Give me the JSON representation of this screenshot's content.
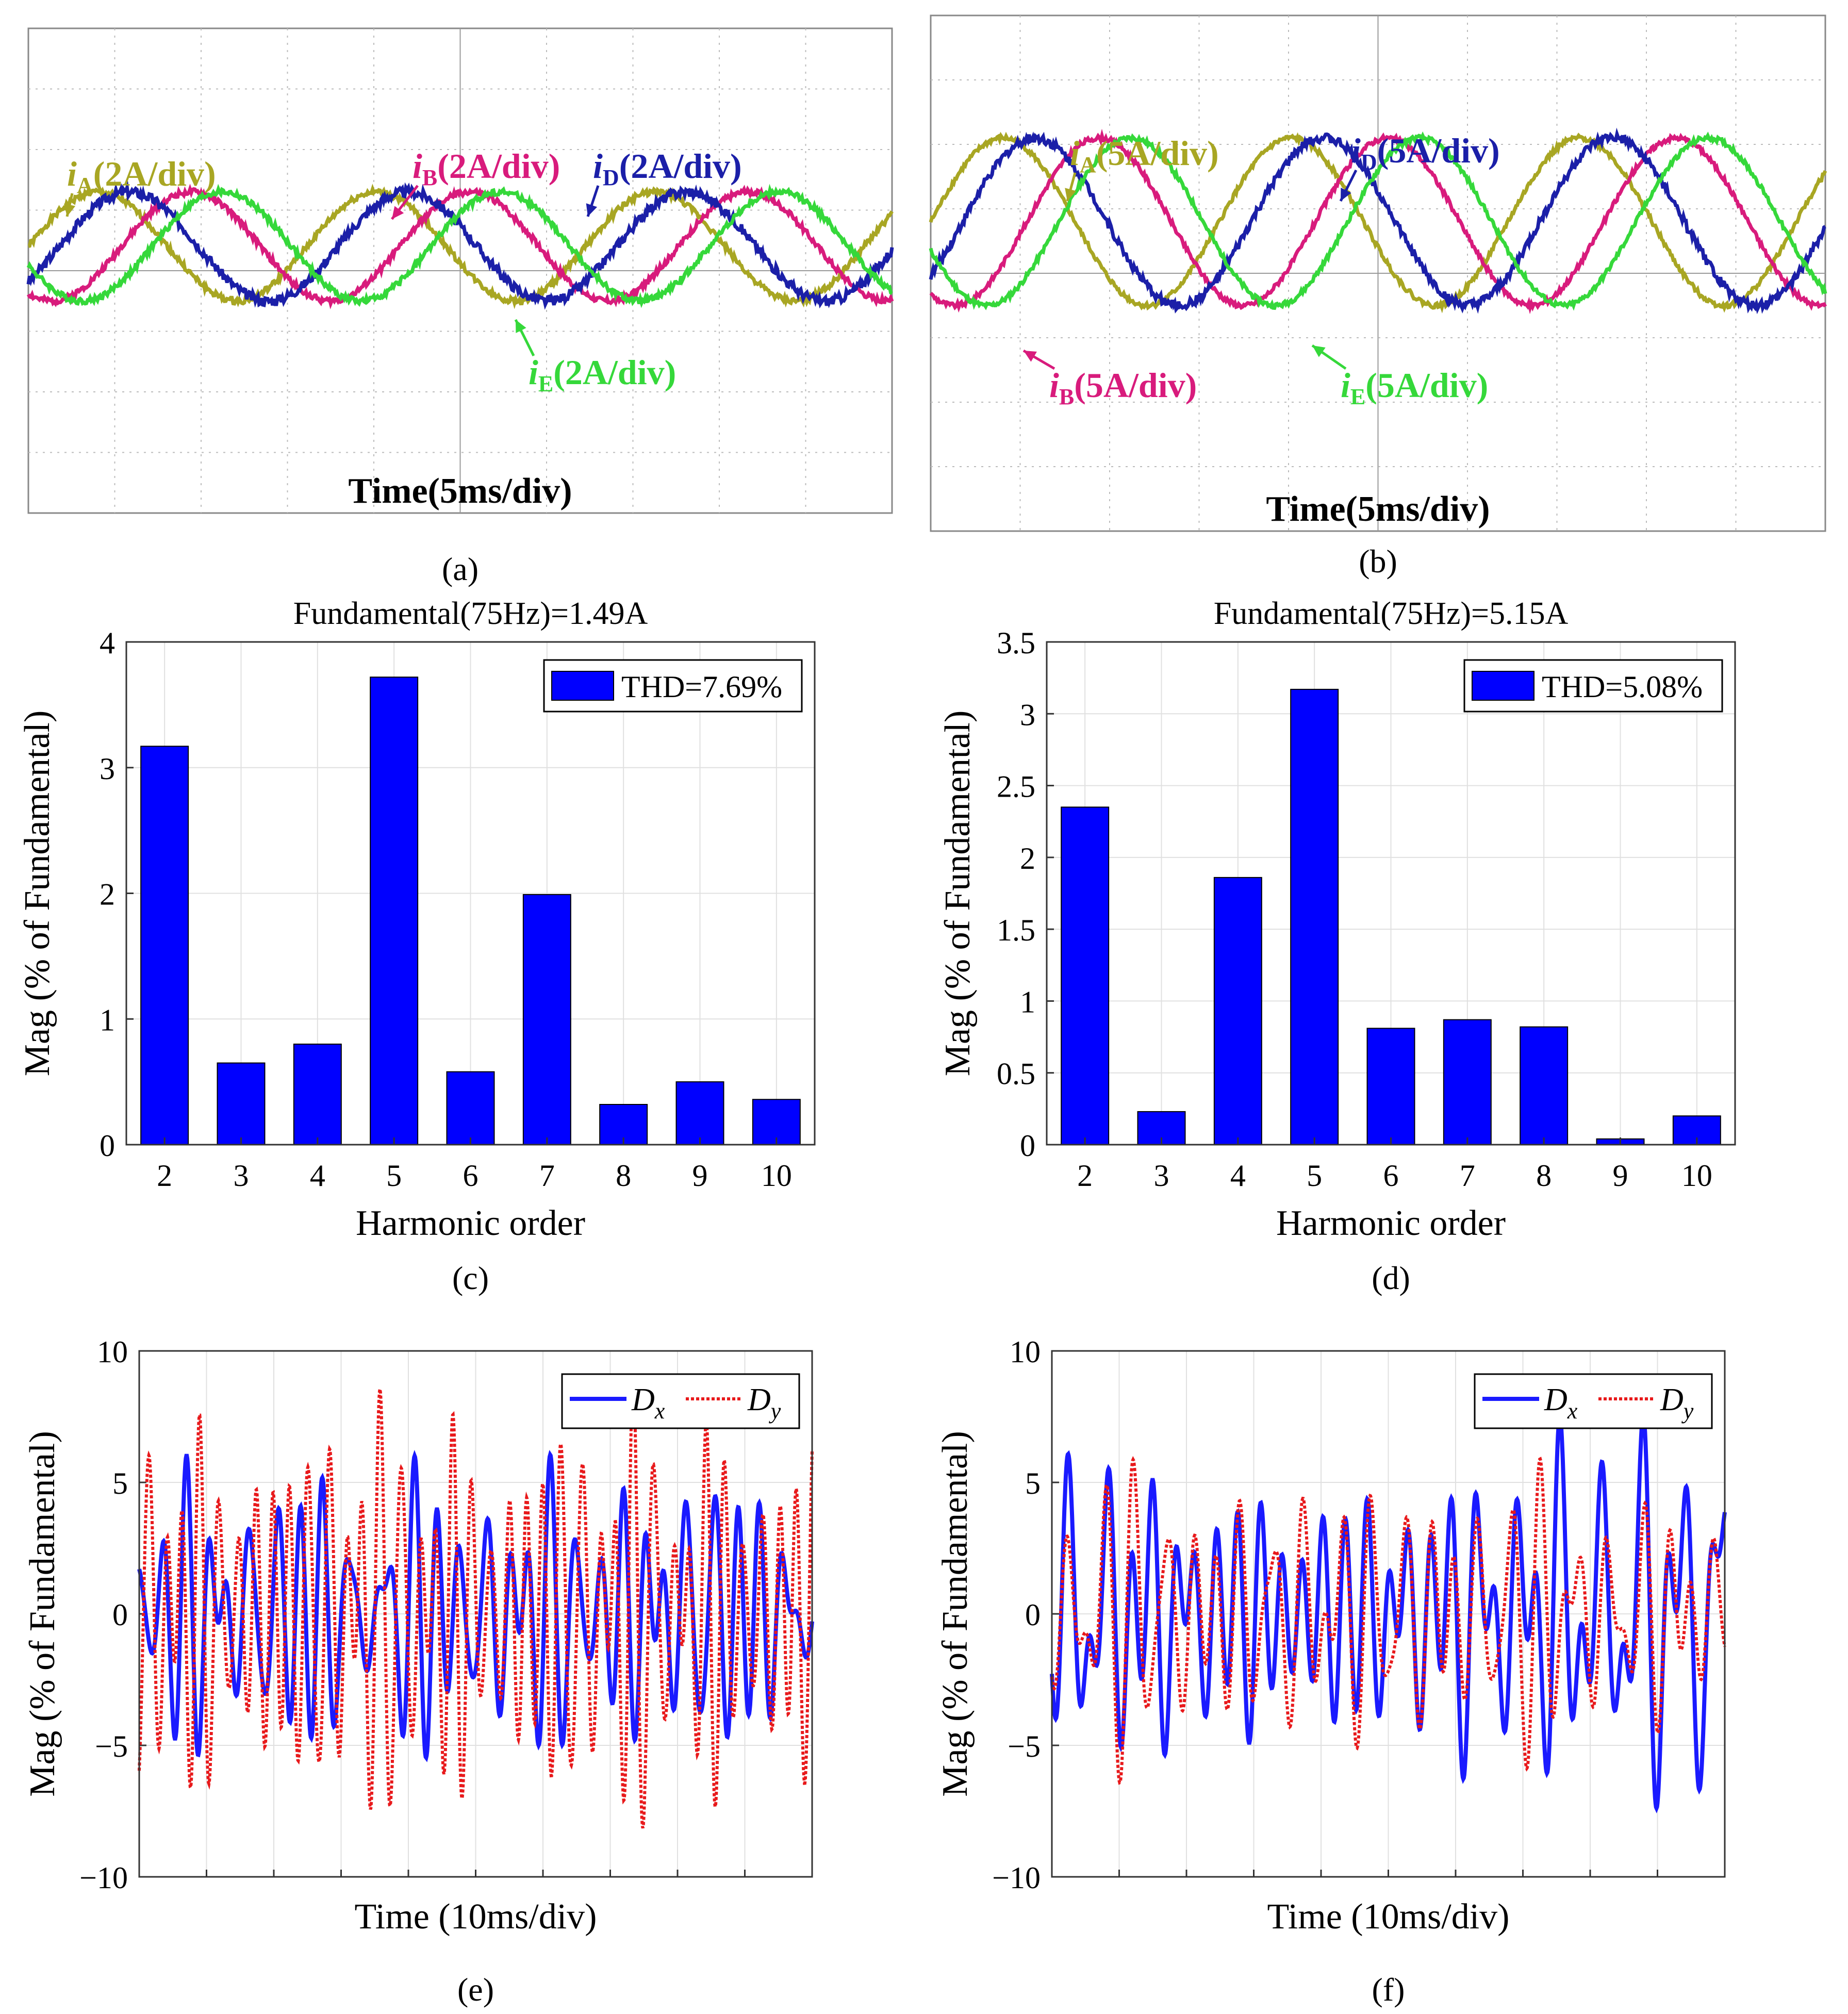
{
  "chart_data": [
    {
      "panel": "a",
      "type": "line",
      "caption": "(a)",
      "xlabel": "Time(5ms/div)",
      "background": "#ffffff",
      "series": [
        {
          "name": "iA",
          "label": "(2A/div)",
          "sub": "A",
          "color": "#a8a623",
          "amp": 0.9,
          "phase_deg": 0,
          "periods": 3.1,
          "offset": 0.45,
          "noise": 0.05
        },
        {
          "name": "iB",
          "label": "(2A/div)",
          "sub": "B",
          "color": "#d81b7c",
          "amp": 0.9,
          "phase_deg": -120,
          "periods": 3.1,
          "offset": 0.45,
          "noise": 0.05
        },
        {
          "name": "iD",
          "label": "(2A/div)",
          "sub": "D",
          "color": "#1b1fa8",
          "amp": 0.9,
          "phase_deg": -40,
          "periods": 3.1,
          "offset": 0.45,
          "noise": 0.08
        },
        {
          "name": "iE",
          "label": "(2A/div)",
          "sub": "E",
          "color": "#35d83a",
          "amp": 0.9,
          "phase_deg": -160,
          "periods": 3.1,
          "offset": 0.45,
          "noise": 0.05
        }
      ]
    },
    {
      "panel": "b",
      "type": "line",
      "caption": "(b)",
      "xlabel": "Time(5ms/div)",
      "background": "#ffffff",
      "series": [
        {
          "name": "iA",
          "label": "(5A/div)",
          "sub": "A",
          "color": "#a8a623",
          "amp": 1.3,
          "phase_deg": 0,
          "periods": 3.1,
          "offset": 0.4,
          "noise": 0.04
        },
        {
          "name": "iB",
          "label": "(5A/div)",
          "sub": "B",
          "color": "#d81b7c",
          "amp": 1.3,
          "phase_deg": -120,
          "periods": 3.1,
          "offset": 0.4,
          "noise": 0.04
        },
        {
          "name": "iD",
          "label": "(5A/div)",
          "sub": "D",
          "color": "#1b1fa8",
          "amp": 1.3,
          "phase_deg": -40,
          "periods": 3.1,
          "offset": 0.4,
          "noise": 0.07
        },
        {
          "name": "iE",
          "label": "(5A/div)",
          "sub": "E",
          "color": "#35d83a",
          "amp": 1.3,
          "phase_deg": -160,
          "periods": 3.1,
          "offset": 0.4,
          "noise": 0.04
        }
      ]
    },
    {
      "panel": "c",
      "type": "bar",
      "caption": "(c)",
      "title": "Fundamental(75Hz)=1.49A",
      "xlabel": "Harmonic order",
      "ylabel": "Mag (% of Fundamental)",
      "legend": "THD=7.69%",
      "legend_position": "top-right",
      "color": "#0000ff",
      "categories": [
        "2",
        "3",
        "4",
        "5",
        "6",
        "7",
        "8",
        "9",
        "10"
      ],
      "values": [
        3.17,
        0.65,
        0.8,
        3.72,
        0.58,
        1.99,
        0.32,
        0.5,
        0.36
      ],
      "ylim": [
        0,
        4
      ],
      "yticks": [
        0,
        1,
        2,
        3,
        4
      ],
      "ytick_labels": [
        "0",
        "1",
        "2",
        "3",
        "4"
      ],
      "grid": true
    },
    {
      "panel": "d",
      "type": "bar",
      "caption": "(d)",
      "title": "Fundamental(75Hz)=5.15A",
      "xlabel": "Harmonic order",
      "ylabel": "Mag (% of Fundamental)",
      "legend": "THD=5.08%",
      "legend_position": "top-right",
      "color": "#0000ff",
      "categories": [
        "2",
        "3",
        "4",
        "5",
        "6",
        "7",
        "8",
        "9",
        "10"
      ],
      "values": [
        2.35,
        0.23,
        1.86,
        3.17,
        0.81,
        0.87,
        0.82,
        0.04,
        0.2
      ],
      "ylim": [
        0,
        3.5
      ],
      "yticks": [
        0,
        0.5,
        1,
        1.5,
        2,
        2.5,
        3,
        3.5
      ],
      "ytick_labels": [
        "0",
        "0.5",
        "1",
        "1.5",
        "2",
        "2.5",
        "3",
        "3.5"
      ],
      "grid": true
    },
    {
      "panel": "e",
      "type": "line",
      "caption": "(e)",
      "xlabel": "Time (10ms/div)",
      "ylabel": "Mag (% of Fundamental)",
      "ylim": [
        -10,
        10
      ],
      "yticks": [
        -10,
        -5,
        0,
        5,
        10
      ],
      "ytick_labels": [
        "−10",
        "−5",
        "0",
        "5",
        "10"
      ],
      "legend_position": "top-right",
      "grid": true,
      "series": [
        {
          "name": "Dx",
          "base": "D",
          "sub": "x",
          "color": "#1a1aff",
          "style": "solid",
          "amp": 3.8,
          "cycles": 26,
          "seed": 3
        },
        {
          "name": "Dy",
          "base": "D",
          "sub": "y",
          "color": "#e8191b",
          "style": "dotted",
          "amp": 5.2,
          "cycles": 34,
          "seed": 11
        }
      ]
    },
    {
      "panel": "f",
      "type": "line",
      "caption": "(f)",
      "xlabel": "Time (10ms/div)",
      "ylabel": "Mag (% of Fundamental)",
      "ylim": [
        -10,
        10
      ],
      "yticks": [
        -10,
        -5,
        0,
        5,
        10
      ],
      "ytick_labels": [
        "−10",
        "−5",
        "0",
        "5",
        "10"
      ],
      "legend_position": "top-right",
      "grid": true,
      "series": [
        {
          "name": "Dx",
          "base": "D",
          "sub": "x",
          "color": "#1a1aff",
          "style": "solid",
          "amp": 4.6,
          "cycles": 24,
          "seed": 5
        },
        {
          "name": "Dy",
          "base": "D",
          "sub": "y",
          "color": "#e8191b",
          "style": "dotted",
          "amp": 3.6,
          "cycles": 24,
          "seed": 7
        }
      ]
    }
  ]
}
